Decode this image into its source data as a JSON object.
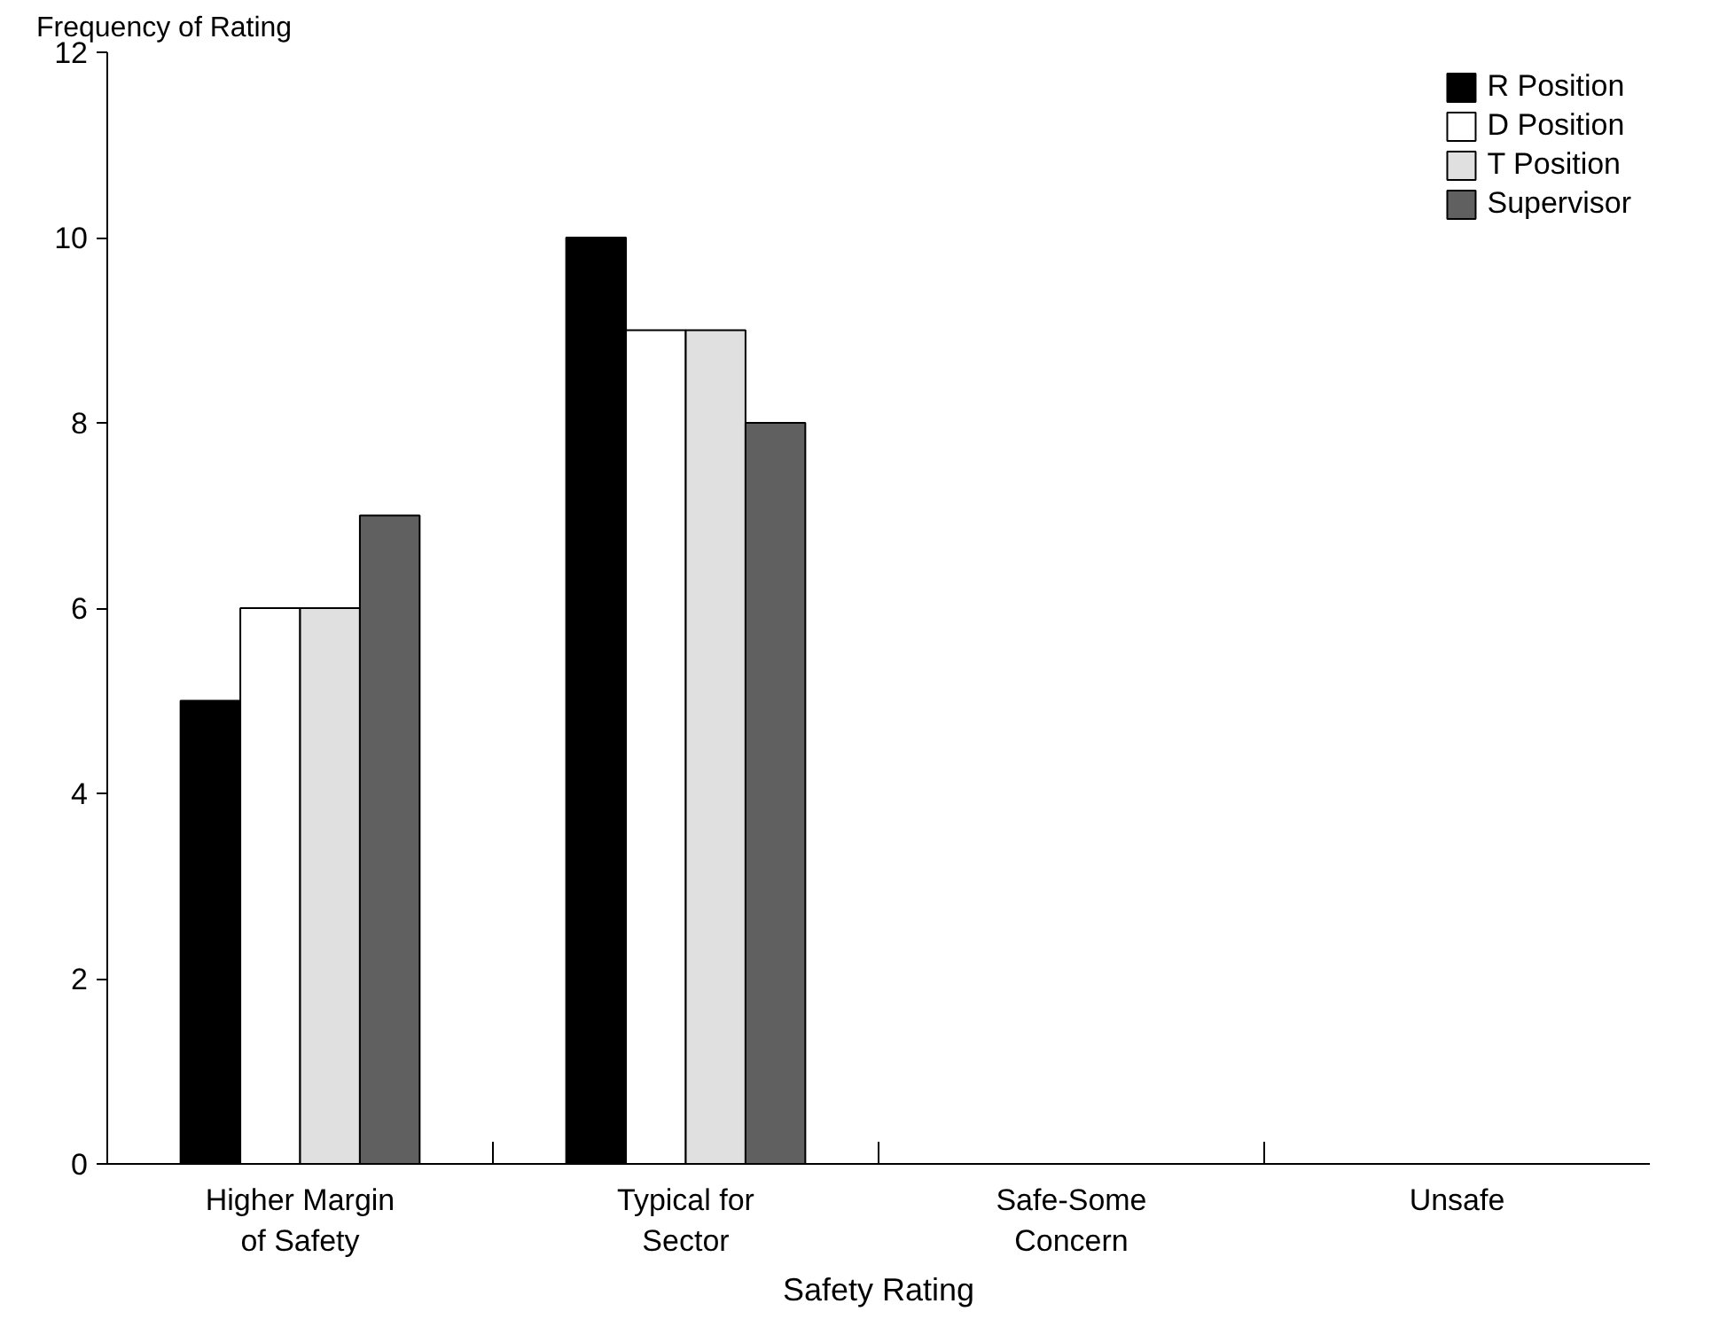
{
  "chart_data": {
    "type": "bar",
    "xlabel": "Safety Rating",
    "ylabel": "Frequency of Rating",
    "categories": [
      "Higher Margin of Safety",
      "Typical for Sector",
      "Safe-Some Concern",
      "Unsafe"
    ],
    "series": [
      {
        "name": "R Position",
        "color": "#000000",
        "values": [
          5,
          10,
          0,
          0
        ]
      },
      {
        "name": "D Position",
        "color": "#ffffff",
        "values": [
          6,
          9,
          0,
          0
        ]
      },
      {
        "name": "T Position",
        "color": "#e0e0e0",
        "values": [
          6,
          9,
          0,
          0
        ]
      },
      {
        "name": "Supervisor",
        "color": "#606060",
        "values": [
          7,
          8,
          0,
          0
        ]
      }
    ],
    "ylim": [
      0,
      12
    ],
    "yticks": [
      0,
      2,
      4,
      6,
      8,
      10,
      12
    ],
    "grid": false,
    "legend": "top right"
  }
}
